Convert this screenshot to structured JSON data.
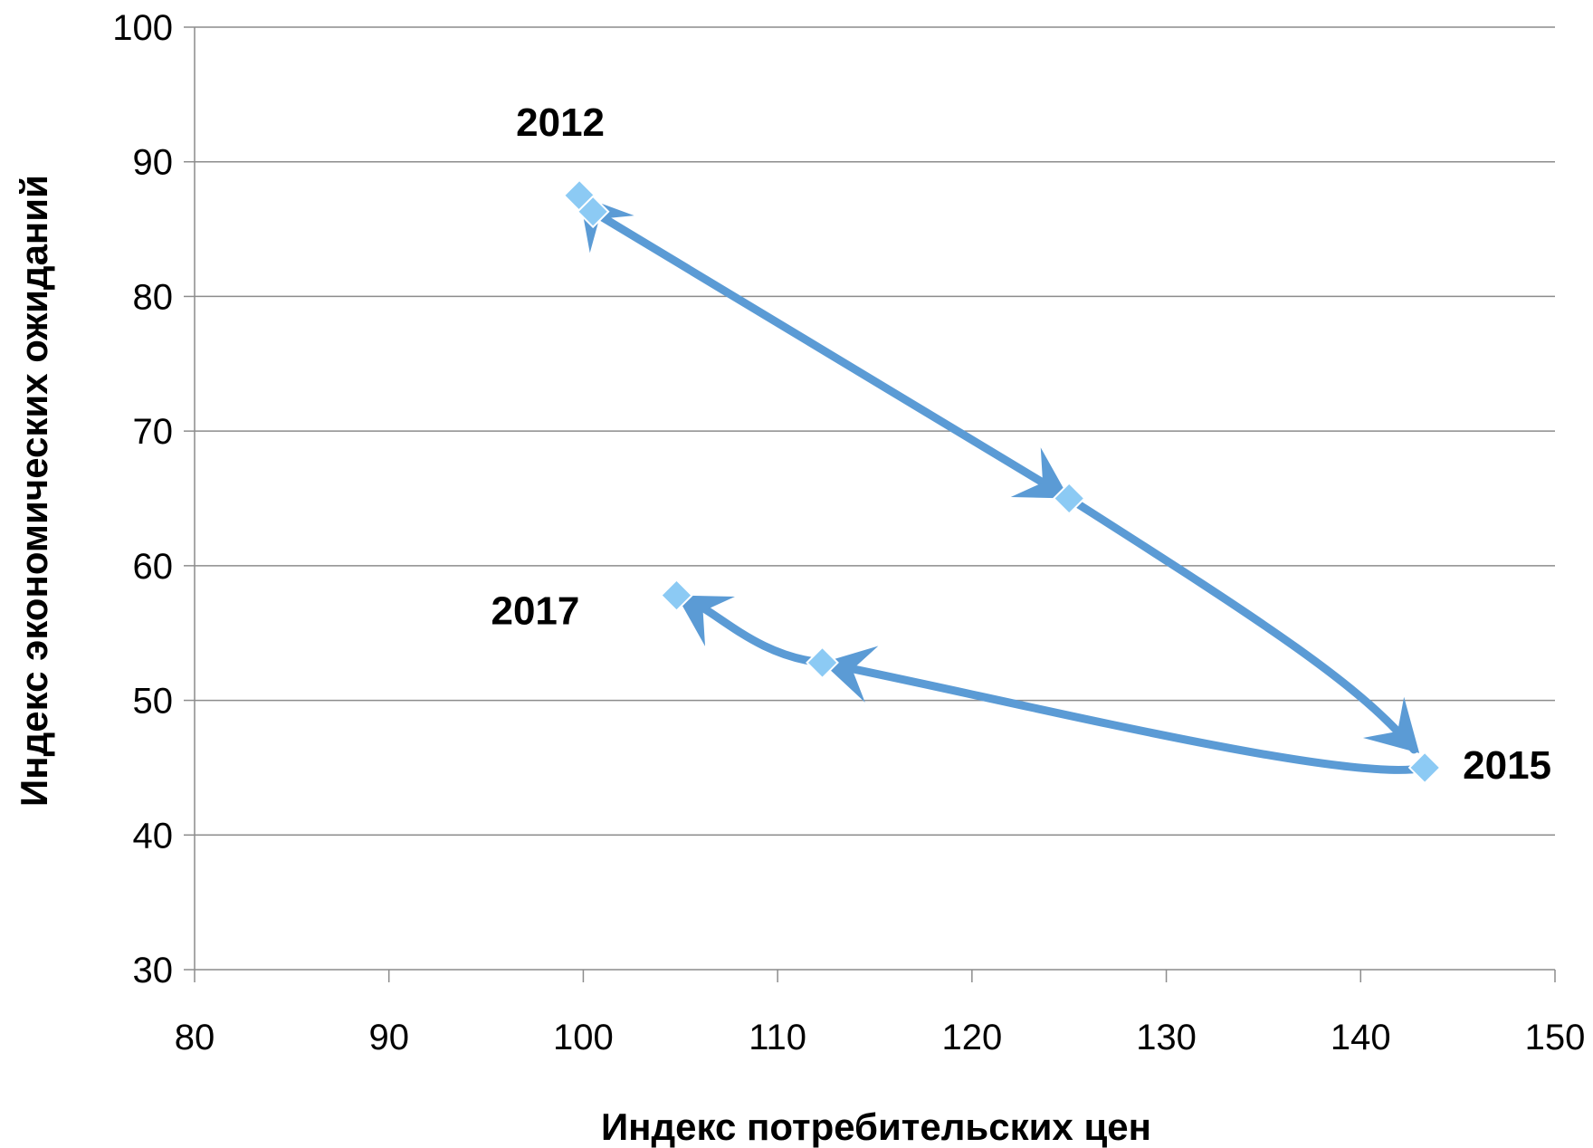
{
  "chart_data": {
    "type": "scatter",
    "xlabel": "Индекс потребительских цен",
    "ylabel": "Индекс экономических ожиданий",
    "xlim": [
      80,
      150
    ],
    "ylim": [
      30,
      100
    ],
    "x_ticks": [
      80,
      90,
      100,
      110,
      120,
      130,
      140,
      150
    ],
    "y_ticks": [
      30,
      40,
      50,
      60,
      70,
      80,
      90,
      100
    ],
    "grid": "horizontal",
    "colors": {
      "line": "#5b9bd5",
      "marker": "#8ccaf4",
      "grid": "#8c8c8c"
    },
    "points": [
      {
        "x": 99.8,
        "y": 87.5
      },
      {
        "x": 100.5,
        "y": 86.3
      },
      {
        "x": 125,
        "y": 65
      },
      {
        "x": 143.3,
        "y": 45
      },
      {
        "x": 112.3,
        "y": 52.8
      },
      {
        "x": 104.8,
        "y": 57.8
      }
    ],
    "point_labels": [
      {
        "text": "2012",
        "point": 0
      },
      {
        "text": "2015",
        "point": 3
      },
      {
        "text": "2017",
        "point": 5
      }
    ]
  }
}
